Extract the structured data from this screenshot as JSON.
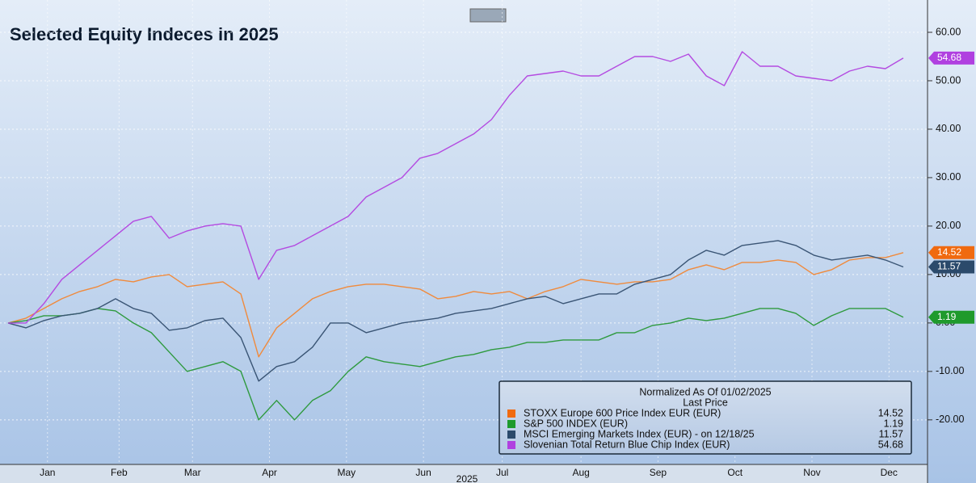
{
  "chart_data": {
    "type": "line",
    "title": "Selected Equity Indeces in 2025",
    "xlabel": "2025",
    "legend_title": "Normalized As Of 01/02/2025",
    "legend_subtitle": "Last Price",
    "xlim": [
      0,
      50
    ],
    "xticks": [
      {
        "value": 2.2,
        "label": "Jan"
      },
      {
        "value": 6.2,
        "label": "Feb"
      },
      {
        "value": 10.3,
        "label": "Mar"
      },
      {
        "value": 14.6,
        "label": "Apr"
      },
      {
        "value": 18.9,
        "label": "May"
      },
      {
        "value": 23.2,
        "label": "Jun"
      },
      {
        "value": 27.6,
        "label": "Jul"
      },
      {
        "value": 32.0,
        "label": "Aug"
      },
      {
        "value": 36.3,
        "label": "Sep"
      },
      {
        "value": 40.6,
        "label": "Oct"
      },
      {
        "value": 44.9,
        "label": "Nov"
      },
      {
        "value": 49.2,
        "label": "Dec"
      }
    ],
    "ylim": [
      -29.2,
      65
    ],
    "yticks": [
      {
        "value": 60,
        "label": "60.00"
      },
      {
        "value": 50,
        "label": "50.00"
      },
      {
        "value": 40,
        "label": "40.00"
      },
      {
        "value": 30,
        "label": "30.00"
      },
      {
        "value": 20,
        "label": "20.00"
      },
      {
        "value": 10,
        "label": "10.00"
      },
      {
        "value": 0,
        "label": "0.00"
      },
      {
        "value": -10,
        "label": "-10.00"
      },
      {
        "value": -20,
        "label": "-20.00"
      }
    ],
    "grid": true,
    "series": [
      {
        "name": "STOXX Europe 600 Price Index EUR (EUR)",
        "color": "#f08a3c",
        "tag_color": "#f06a10",
        "values": [
          0,
          1,
          3,
          5,
          6.5,
          7.5,
          9,
          8.5,
          9.5,
          10,
          7.5,
          8,
          8.5,
          6,
          -7,
          -1,
          2,
          5,
          6.5,
          7.5,
          8,
          8,
          7.5,
          7,
          5,
          5.5,
          6.5,
          6,
          6.5,
          5,
          6.5,
          7.5,
          9,
          8.5,
          8,
          8.5,
          8.5,
          9,
          11,
          12,
          11,
          12.5,
          12.5,
          13,
          12.5,
          10,
          11,
          13,
          13.5,
          13.5,
          14.52
        ]
      },
      {
        "name": "S&P 500 INDEX (EUR)",
        "color": "#2e9a3e",
        "tag_color": "#1f9a2c",
        "values": [
          0,
          0.5,
          1.5,
          1.5,
          2,
          3,
          2.5,
          0,
          -2,
          -6,
          -10,
          -9,
          -8,
          -10,
          -20,
          -16,
          -20,
          -16,
          -14,
          -10,
          -7,
          -8,
          -8.5,
          -9,
          -8,
          -7,
          -6.5,
          -5.5,
          -5,
          -4,
          -4,
          -3.5,
          -3.5,
          -3.5,
          -2,
          -2,
          -0.5,
          0,
          1,
          0.5,
          1,
          2,
          3,
          3,
          2,
          -0.5,
          1.5,
          3,
          3,
          3,
          1.19
        ]
      },
      {
        "name": "MSCI Emerging Markets Index (EUR) -  on 12/18/25",
        "color": "#3a5575",
        "tag_color": "#2b4a6b",
        "values": [
          0,
          -1,
          0.5,
          1.5,
          2,
          3,
          5,
          3,
          2,
          -1.5,
          -1,
          0.5,
          1,
          -3,
          -12,
          -9,
          -8,
          -5,
          0,
          0,
          -2,
          -1,
          0,
          0.5,
          1,
          2,
          2.5,
          3,
          4,
          5,
          5.5,
          4,
          5,
          6,
          6,
          8,
          9,
          10,
          13,
          15,
          14,
          16,
          16.5,
          17,
          16,
          14,
          13,
          13.5,
          14,
          13,
          11.57
        ]
      },
      {
        "name": "Slovenian Total Return Blue Chip Index (EUR)",
        "color": "#b44be1",
        "tag_color": "#b040e0",
        "values": [
          0,
          0,
          4,
          9,
          12,
          15,
          18,
          21,
          22,
          17.5,
          19,
          20,
          20.5,
          20,
          9,
          15,
          16,
          18,
          20,
          22,
          26,
          28,
          30,
          34,
          35,
          37,
          39,
          42,
          47,
          51,
          51.5,
          52,
          51,
          51,
          53,
          55,
          55,
          54,
          55.5,
          51,
          49,
          56,
          53,
          53,
          51,
          50.5,
          50,
          52,
          53,
          52.5,
          54.68
        ]
      }
    ]
  }
}
